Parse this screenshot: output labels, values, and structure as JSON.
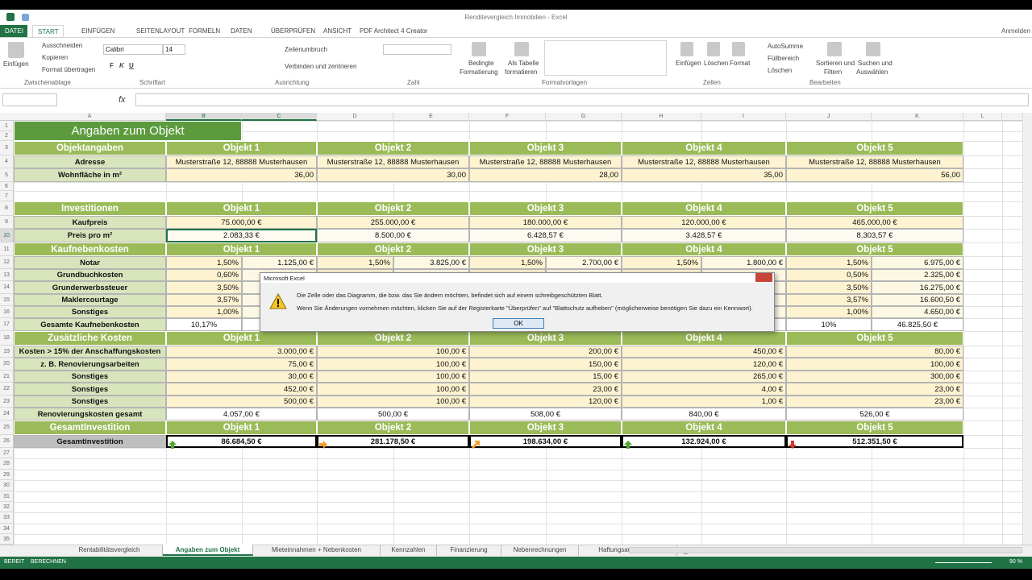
{
  "window": {
    "title": "Renditevergleich Immobilien - Excel",
    "account": "Anmelden"
  },
  "ribbon": {
    "tabs": [
      "DATEI",
      "START",
      "EINFÜGEN",
      "SEITENLAYOUT",
      "FORMELN",
      "DATEN",
      "ÜBERPRÜFEN",
      "ANSICHT",
      "PDF Architect 4 Creator"
    ],
    "active_tab": 1,
    "clipboard": {
      "paste": "Einfügen",
      "cut": "Ausschneiden",
      "copy": "Kopieren",
      "painter": "Format übertragen",
      "label": "Zwischenablage"
    },
    "font": {
      "name": "Calibri",
      "size": "14",
      "buttons": [
        "F",
        "K",
        "U"
      ],
      "label": "Schriftart"
    },
    "alignment": {
      "wrap": "Zeilenumbruch",
      "merge": "Verbinden und zentrieren",
      "label": "Ausrichtung"
    },
    "number": {
      "label": "Zahl"
    },
    "styles": {
      "conditional": [
        "Bedingte",
        "Formatierung"
      ],
      "table": [
        "Als Tabelle",
        "formatieren"
      ],
      "label": "Formatvorlagen"
    },
    "cells": {
      "insert": "Einfügen",
      "delete": "Löschen",
      "format": "Format",
      "label": "Zellen"
    },
    "editing": {
      "autosum": "AutoSumme",
      "fill": "Füllbereich",
      "clear": "Löschen",
      "sort": [
        "Sortieren und",
        "Filtern"
      ],
      "find": [
        "Suchen und",
        "Auswählen"
      ],
      "label": "Bearbeiten"
    }
  },
  "formula_bar": {
    "fx": "fx"
  },
  "columns": [
    "A",
    "B",
    "C",
    "D",
    "E",
    "F",
    "G",
    "H",
    "I",
    "J",
    "K",
    "L"
  ],
  "row_numbers": [
    1,
    2,
    3,
    4,
    5,
    6,
    7,
    8,
    9,
    10,
    11,
    12,
    13,
    14,
    15,
    16,
    17,
    18,
    19,
    20,
    21,
    22,
    23,
    24,
    25,
    26,
    27,
    28,
    29,
    30,
    31,
    32,
    33,
    34,
    35
  ],
  "sheet": {
    "title": "Angaben zum Objekt",
    "objects": [
      "Objekt 1",
      "Objekt 2",
      "Objekt 3",
      "Objekt 4",
      "Objekt 5"
    ],
    "objektangaben": {
      "header": "Objektangaben",
      "rows": [
        {
          "label": "Adresse",
          "values": [
            "Musterstraße 12, 88888 Musterhausen",
            "Musterstraße 12, 88888 Musterhausen",
            "Musterstraße 12, 88888 Musterhausen",
            "Musterstraße 12, 88888 Musterhausen",
            "Musterstraße 12, 88888 Musterhausen"
          ]
        },
        {
          "label": "Wohnfläche in m²",
          "values": [
            "36,00",
            "30,00",
            "28,00",
            "35,00",
            "56,00"
          ]
        }
      ]
    },
    "investitionen": {
      "header": "Investitionen",
      "rows": [
        {
          "label": "Kaufpreis",
          "values": [
            "75.000,00 €",
            "255.000,00 €",
            "180.000,00 €",
            "120.000,00 €",
            "465.000,00 €"
          ]
        },
        {
          "label": "Preis pro m²",
          "values": [
            "2.083,33 €",
            "8.500,00 €",
            "6.428,57 €",
            "3.428,57 €",
            "8.303,57 €"
          ]
        }
      ]
    },
    "kaufnebenkosten": {
      "header": "Kaufnebenkosten",
      "rows": [
        {
          "label": "Notar",
          "values": [
            [
              "1,50%",
              "1.125,00 €"
            ],
            [
              "1,50%",
              "3.825,00 €"
            ],
            [
              "1,50%",
              "2.700,00 €"
            ],
            [
              "1,50%",
              "1.800,00 €"
            ],
            [
              "1,50%",
              "6.975,00 €"
            ]
          ]
        },
        {
          "label": "Grundbuchkosten",
          "values": [
            [
              "0,60%",
              null
            ],
            [
              null,
              null
            ],
            [
              null,
              null
            ],
            [
              null,
              null
            ],
            [
              "0,50%",
              "2.325,00 €"
            ]
          ]
        },
        {
          "label": "Grunderwerbssteuer",
          "values": [
            [
              "3,50%",
              null
            ],
            [
              null,
              null
            ],
            [
              null,
              null
            ],
            [
              null,
              null
            ],
            [
              "3,50%",
              "16.275,00 €"
            ]
          ]
        },
        {
          "label": "Maklercourtage",
          "values": [
            [
              "3,57%",
              null
            ],
            [
              null,
              null
            ],
            [
              null,
              null
            ],
            [
              null,
              null
            ],
            [
              "3,57%",
              "16.600,50 €"
            ]
          ]
        },
        {
          "label": "Sonstiges",
          "values": [
            [
              "1,00%",
              null
            ],
            [
              null,
              null
            ],
            [
              null,
              null
            ],
            [
              null,
              null
            ],
            [
              "1,00%",
              "4.650,00 €"
            ]
          ]
        },
        {
          "label": "Gesamte Kaufnebenkosten",
          "values": [
            [
              "10,17%",
              null
            ],
            [
              null,
              null
            ],
            [
              null,
              null
            ],
            [
              null,
              null
            ],
            [
              "10%",
              "46.825,50 €"
            ]
          ]
        }
      ]
    },
    "zusaetzliche_kosten": {
      "header": "Zusätzliche Kosten",
      "rows": [
        {
          "label": "Kosten > 15% der Anschaffungskosten",
          "values": [
            "3.000,00 €",
            "100,00 €",
            "200,00 €",
            "450,00 €",
            "80,00 €"
          ]
        },
        {
          "label": "z. B. Renovierungsarbeiten",
          "values": [
            "75,00 €",
            "100,00 €",
            "150,00 €",
            "120,00 €",
            "100,00 €"
          ]
        },
        {
          "label": "Sonstiges",
          "values": [
            "30,00 €",
            "100,00 €",
            "15,00 €",
            "265,00 €",
            "300,00 €"
          ]
        },
        {
          "label": "Sonstiges",
          "values": [
            "452,00 €",
            "100,00 €",
            "23,00 €",
            "4,00 €",
            "23,00 €"
          ]
        },
        {
          "label": "Sonstiges",
          "values": [
            "500,00 €",
            "100,00 €",
            "120,00 €",
            "1,00 €",
            "23,00 €"
          ]
        }
      ],
      "total": {
        "label": "Renovierungskosten gesamt",
        "values": [
          "4.057,00 €",
          "500,00 €",
          "508,00 €",
          "840,00 €",
          "526,00 €"
        ]
      }
    },
    "gesamtinvestition": {
      "header": "GesamtInvestition",
      "rows": [
        {
          "label": "Gesamtinvestition",
          "values": [
            "86.684,50 €",
            "281.178,50 €",
            "198.634,00 €",
            "132.924,00 €",
            "512.351,50 €"
          ]
        }
      ]
    }
  },
  "dialog": {
    "title": "Microsoft Excel",
    "line1": "Die Zelle oder das Diagramm, die bzw. das Sie ändern möchten, befindet sich auf einem schreibgeschützten Blatt.",
    "line2": "Wenn Sie Änderungen vornehmen möchten, klicken Sie auf der Registerkarte \"Überprüfen\" auf \"Blattschutz aufheben\" (möglicherweise benötigen Sie dazu ein Kennwort).",
    "button": "OK"
  },
  "sheet_tabs": {
    "tabs": [
      "Rentabilitätsvergleich",
      "Angaben zum Objekt",
      "Mieteinnahmen + Nebenkosten",
      "Kennzahlen",
      "Finanzierung",
      "Nebenrechnungen",
      "Haftungsausschlu ..."
    ],
    "active": 1
  },
  "status": {
    "ready": "BEREIT",
    "calc": "BERECHNEN",
    "zoom": "90 %"
  }
}
